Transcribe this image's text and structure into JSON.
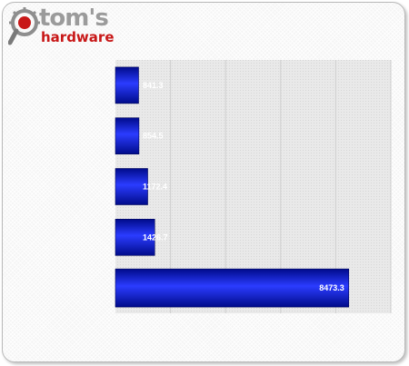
{
  "logo": {
    "word1": "tom's",
    "word2": "hardware",
    "icon": "gear-magnifier-icon"
  },
  "colors": {
    "bar_dark": "#000b8a",
    "bar_light": "#2b3cff",
    "plot_bg": "#e9e9e9",
    "grid": "#cfcfcf",
    "value_label": "#ffffff",
    "logo_red": "#c81818",
    "logo_gray": "#9b9b9b"
  },
  "chart_data": {
    "type": "bar",
    "orientation": "horizontal",
    "categories": [
      "",
      "",
      "",
      "",
      ""
    ],
    "values": [
      841.3,
      854.5,
      1172.4,
      1426.7,
      8473.3
    ],
    "value_labels": [
      "841.3",
      "854.5",
      "1172.4",
      "1426.7",
      "8473.3"
    ],
    "xlim": [
      0,
      10000
    ],
    "grid": true,
    "legend": "none"
  }
}
